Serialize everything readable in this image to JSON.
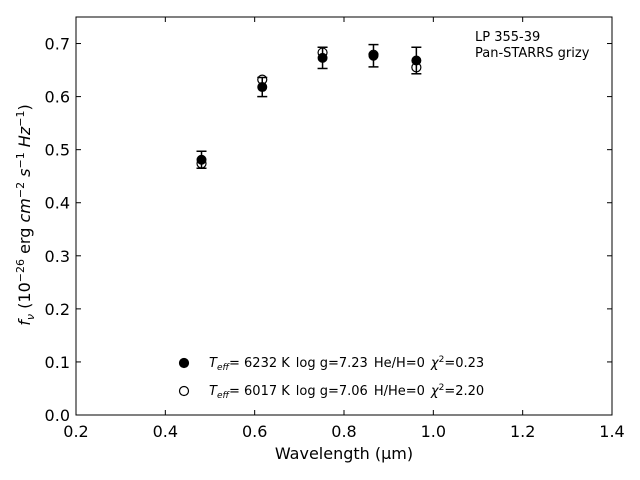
{
  "chart_data": {
    "type": "scatter",
    "xlabel": "Wavelength (μm)",
    "ylabel_parts": {
      "f": "f",
      "nu": "ν",
      "unit_open": " (10",
      "exp_scale": "−26",
      "erg": " erg ",
      "cm": "cm",
      "exp_cm": "−2",
      "s": " s",
      "exp_s": "−1",
      "hz": " Hz",
      "exp_hz": "−1",
      "close": ")"
    },
    "xlim": [
      0.2,
      1.4
    ],
    "ylim": [
      0.0,
      0.75
    ],
    "xticks": [
      "0.2",
      "0.4",
      "0.6",
      "0.8",
      "1.0",
      "1.2",
      "1.4"
    ],
    "yticks": [
      "0.0",
      "0.1",
      "0.2",
      "0.3",
      "0.4",
      "0.5",
      "0.6",
      "0.7"
    ],
    "annotation": [
      "LP 355-39",
      "Pan-STARRS grizy"
    ],
    "legend_position": "lower-center",
    "observed": {
      "x": [
        0.481,
        0.617,
        0.752,
        0.866,
        0.962
      ],
      "y": [
        0.481,
        0.618,
        0.673,
        0.677,
        0.668
      ],
      "yerr": [
        0.016,
        0.018,
        0.02,
        0.021,
        0.025
      ]
    },
    "series": [
      {
        "marker": "filled",
        "legend": {
          "teff_value": "= 6232 K",
          "logg": "log g=7.23",
          "comp": "He/H=0",
          "chi_value": "=0.23"
        },
        "x": [
          0.481,
          0.617,
          0.752,
          0.866,
          0.962
        ],
        "y": [
          0.481,
          0.618,
          0.673,
          0.677,
          0.668
        ]
      },
      {
        "marker": "open",
        "legend": {
          "teff_value": "= 6017 K",
          "logg": "log g=7.06",
          "comp": "H/He=0",
          "chi_value": "=2.20"
        },
        "x": [
          0.481,
          0.617,
          0.752,
          0.866,
          0.962
        ],
        "y": [
          0.474,
          0.632,
          0.683,
          0.679,
          0.655
        ]
      }
    ],
    "teff_label": {
      "T": "T",
      "sub": "eff"
    },
    "chi_label": {
      "chi": "χ",
      "sup": "2"
    }
  }
}
